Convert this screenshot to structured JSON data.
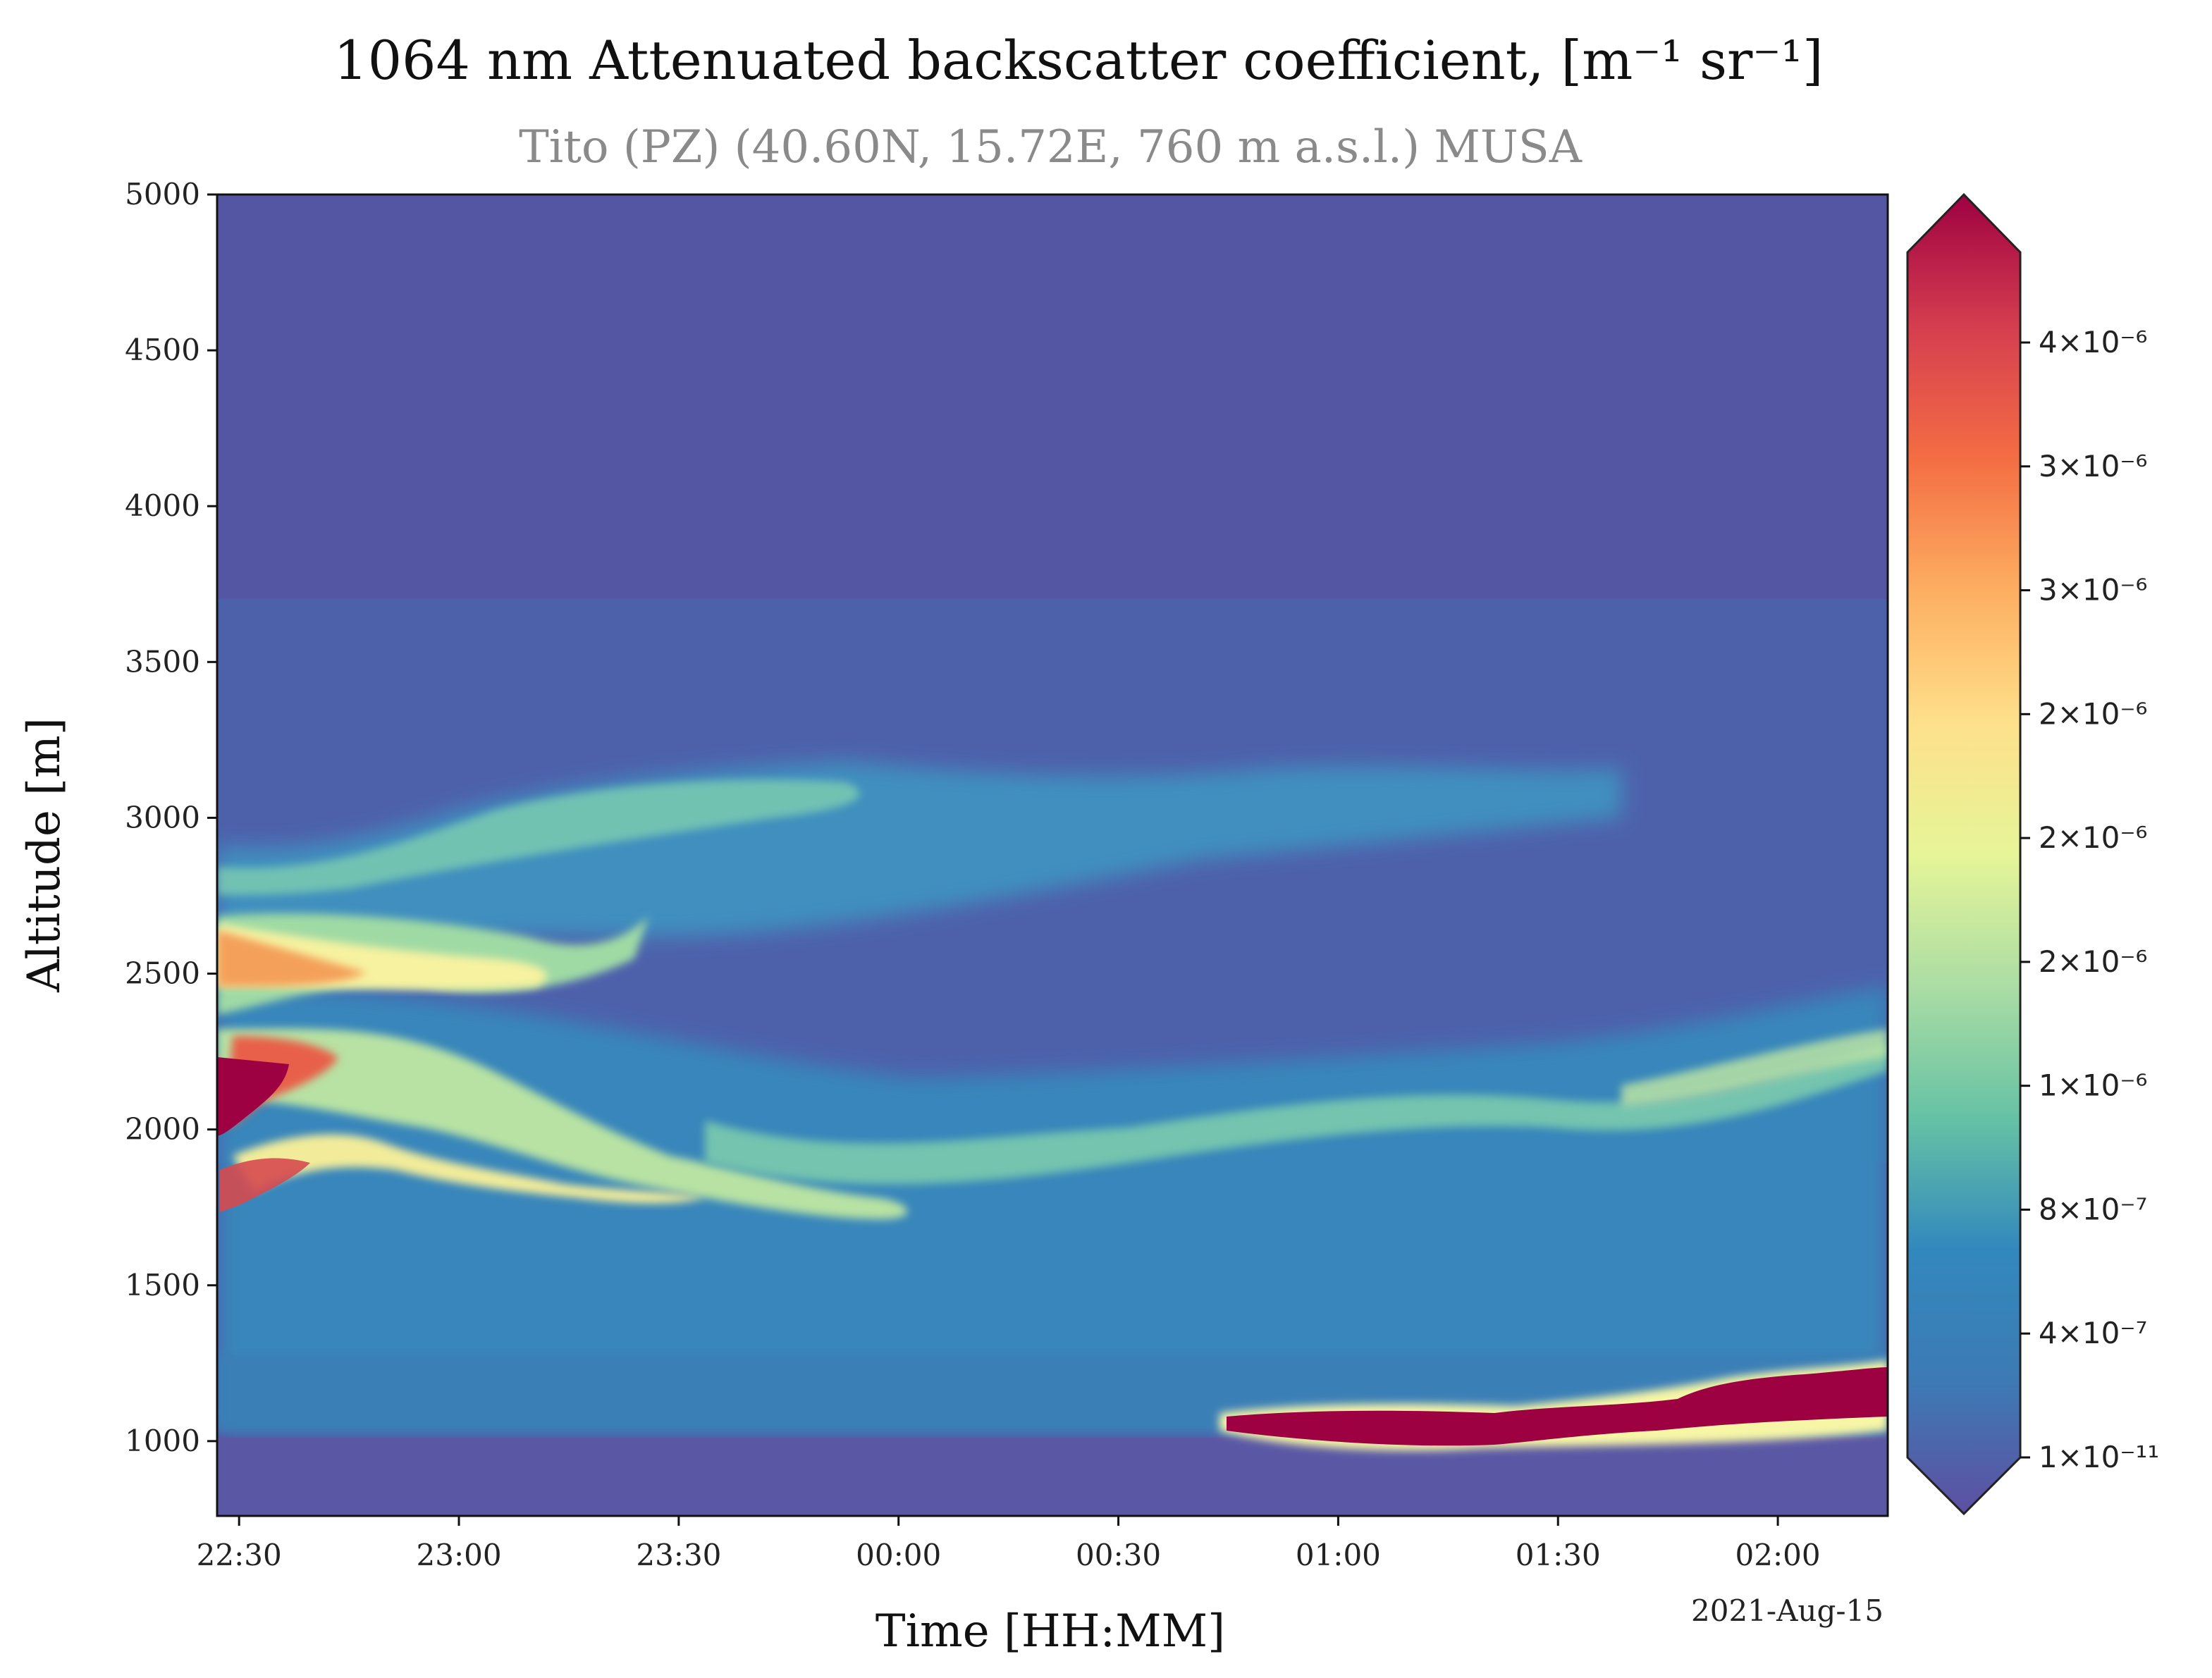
{
  "chart_data": {
    "type": "heatmap",
    "title": "1064 nm Attenuated backscatter coefficient, [m⁻¹ sr⁻¹]",
    "subtitle": "Tito (PZ) (40.60N, 15.72E, 760 m a.s.l.) MUSA",
    "xlabel": "Time [HH:MM]",
    "ylabel": "Altitude [m]",
    "date_label": "2021-Aug-15",
    "x_ticks": [
      "22:30",
      "23:00",
      "23:30",
      "00:00",
      "00:30",
      "01:00",
      "01:30",
      "02:00"
    ],
    "x_tick_minutes": [
      0,
      30,
      60,
      90,
      120,
      150,
      180,
      210
    ],
    "x_range_minutes": [
      -3,
      225
    ],
    "y_ticks": [
      1000,
      1500,
      2000,
      2500,
      3000,
      3500,
      4000,
      4500,
      5000
    ],
    "y_range": [
      760,
      5000
    ],
    "colorscale": "Spectral_r",
    "colorbar_ticks": [
      "1×10⁻¹¹",
      "4×10⁻⁷",
      "8×10⁻⁷",
      "1×10⁻⁶",
      "2×10⁻⁶",
      "2×10⁻⁶",
      "2×10⁻⁶",
      "3×10⁻⁶",
      "3×10⁻⁶",
      "4×10⁻⁶"
    ],
    "colorbar_extend": "both",
    "features": [
      {
        "name": "elevated aerosol layer (upper edge)",
        "minutes": [
          0,
          30,
          60,
          90,
          120,
          150,
          180
        ],
        "altitude_top": [
          2880,
          2900,
          3100,
          3130,
          3060,
          3050,
          3150
        ]
      },
      {
        "name": "strong layer near 2000-2600 m",
        "minutes": [
          0,
          15,
          30,
          50,
          65
        ],
        "altitude": [
          2200,
          2350,
          2200,
          2050,
          1800
        ]
      },
      {
        "name": "low cloud",
        "minutes": [
          150,
          165,
          180,
          195,
          210,
          225
        ],
        "altitude": [
          1060,
          1070,
          1060,
          1100,
          1150,
          1180
        ]
      },
      {
        "name": "boundary layer top",
        "minutes": [
          0,
          60,
          120,
          180,
          225
        ],
        "altitude": [
          1000,
          1000,
          1000,
          1000,
          1000
        ]
      }
    ]
  }
}
